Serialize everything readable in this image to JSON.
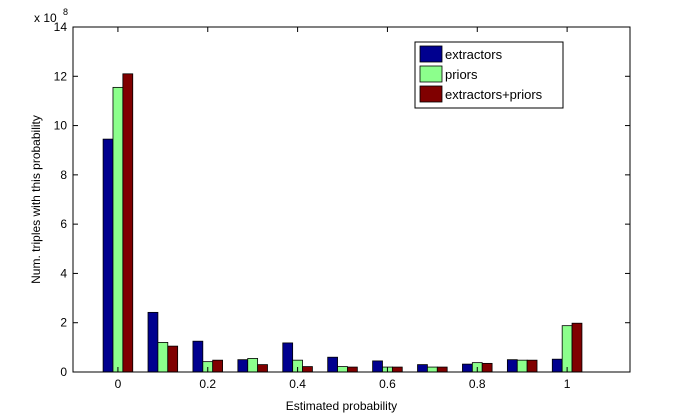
{
  "chart_data": {
    "type": "bar",
    "x_label": "Estimated probability",
    "y_label": "Num. triples with this probability",
    "y_multiplier": {
      "base": "x 10",
      "exponent": 8
    },
    "x": [
      0,
      0.1,
      0.2,
      0.3,
      0.4,
      0.5,
      0.6,
      0.7,
      0.8,
      0.9,
      1
    ],
    "series": [
      {
        "name": "extractors",
        "color": "#00008f",
        "values": [
          9.45,
          2.42,
          1.25,
          0.5,
          1.18,
          0.6,
          0.45,
          0.3,
          0.32,
          0.5,
          0.52
        ]
      },
      {
        "name": "priors",
        "color": "#8cff8c",
        "values": [
          11.55,
          1.2,
          0.42,
          0.55,
          0.48,
          0.22,
          0.2,
          0.2,
          0.38,
          0.48,
          1.88
        ]
      },
      {
        "name": "extractors+priors",
        "color": "#800000",
        "values": [
          12.1,
          1.05,
          0.48,
          0.3,
          0.22,
          0.2,
          0.2,
          0.2,
          0.35,
          0.48,
          1.98
        ]
      }
    ],
    "xlim": [
      -0.1,
      1.14
    ],
    "ylim": [
      0,
      14
    ],
    "xticks": [
      0,
      0.2,
      0.4,
      0.6,
      0.8,
      1
    ],
    "yticks": [
      0,
      2,
      4,
      6,
      8,
      10,
      12,
      14
    ],
    "legend": "upper-right"
  }
}
